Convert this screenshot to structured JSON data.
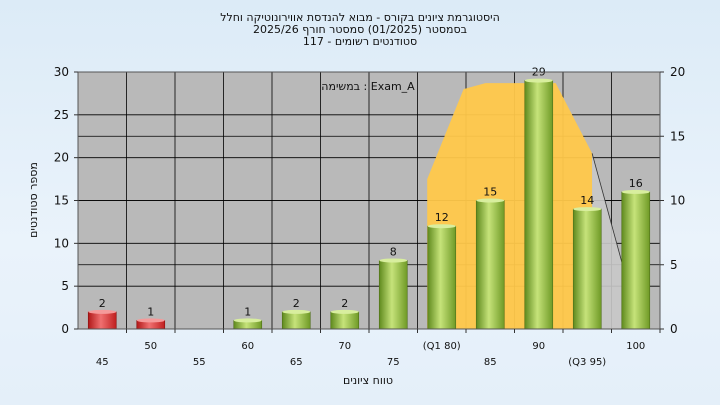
{
  "chart_data": {
    "type": "bar",
    "title_lines": [
      "היסטוגרמת ציונים בקורס - מבוא להנדסת אווירונוטיקה וחלל",
      "בסמסטר  (01/2025)  סמסטר חורף 2025/26",
      "סטודנטים רשומים - 117"
    ],
    "annotation": "במשימה : Exam_A",
    "xlabel": "טווח ציונים",
    "ylabel": "מספר סטודנטים",
    "ylim": [
      0,
      30
    ],
    "y_ticks": [
      0,
      5,
      10,
      15,
      20,
      25,
      30
    ],
    "y2lim": [
      0,
      20
    ],
    "y2_ticks": [
      0,
      5,
      10,
      15,
      20
    ],
    "categories": [
      "45",
      "50",
      "55",
      "60",
      "65",
      "70",
      "75",
      "(Q1 80)",
      "85",
      "90",
      "(Q3 95)",
      "100"
    ],
    "values": [
      2,
      1,
      0,
      1,
      2,
      2,
      8,
      12,
      15,
      29,
      14,
      16
    ],
    "value_labels": [
      "2",
      "1",
      "",
      "1",
      "2",
      "2",
      "8",
      "12",
      "15",
      "29",
      "14",
      "16"
    ],
    "bar_kinds": [
      "fail",
      "fail",
      "none",
      "pass",
      "pass",
      "pass",
      "pass",
      "pass",
      "pass",
      "pass",
      "pass",
      "pass"
    ],
    "iqr_band": {
      "from_category": 7,
      "to_category": 10
    },
    "colors": {
      "fail": "#e03030",
      "pass": "#8cbf3a",
      "iqr_band": "#ffc84a",
      "plot_bg": "#b9b9b9",
      "grid": "#000000"
    },
    "grid": true
  }
}
